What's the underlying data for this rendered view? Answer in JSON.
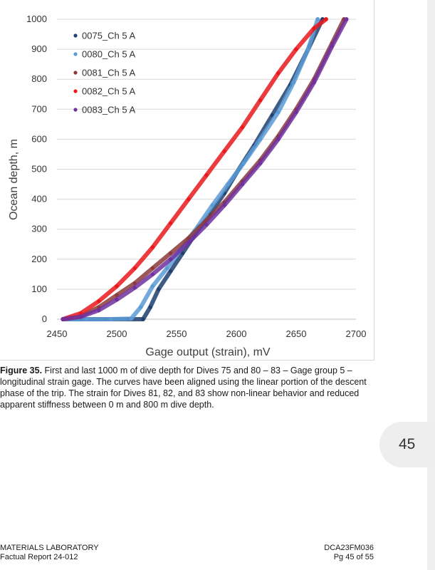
{
  "chart_data": {
    "type": "scatter",
    "title": "",
    "xlabel": "Gage output (strain), mV",
    "ylabel": "Ocean depth, m",
    "xlim": [
      2450,
      2700
    ],
    "ylim": [
      0,
      1000
    ],
    "x_ticks": [
      "2450",
      "2500",
      "2550",
      "2600",
      "2650",
      "2700"
    ],
    "y_ticks": [
      "0",
      "100",
      "200",
      "300",
      "400",
      "500",
      "600",
      "700",
      "800",
      "900",
      "1000"
    ],
    "grid": "horizontal",
    "legend_position": "top-left",
    "series": [
      {
        "name": "0075_Ch 5 A",
        "color": "#1f3f6e",
        "x": [
          2455,
          2470,
          2490,
          2510,
          2522,
          2528,
          2535,
          2545,
          2555,
          2565,
          2578,
          2590,
          2602,
          2615,
          2630,
          2645,
          2660,
          2672
        ],
        "y": [
          0,
          0,
          0,
          0,
          0,
          40,
          100,
          160,
          220,
          280,
          350,
          420,
          500,
          580,
          680,
          780,
          900,
          1000
        ]
      },
      {
        "name": "0080_Ch 5 A",
        "color": "#5b9bd5",
        "x": [
          2455,
          2475,
          2495,
          2512,
          2520,
          2530,
          2542,
          2555,
          2568,
          2580,
          2593,
          2606,
          2620,
          2635,
          2648,
          2660,
          2668
        ],
        "y": [
          0,
          0,
          0,
          2,
          40,
          110,
          170,
          240,
          310,
          380,
          450,
          520,
          600,
          690,
          790,
          900,
          1000
        ]
      },
      {
        "name": "0081_Ch 5 A",
        "color": "#8b3a3a",
        "x": [
          2455,
          2470,
          2485,
          2500,
          2515,
          2530,
          2545,
          2560,
          2575,
          2590,
          2605,
          2620,
          2635,
          2650,
          2665,
          2680,
          2690
        ],
        "y": [
          0,
          10,
          40,
          80,
          120,
          170,
          220,
          270,
          330,
          390,
          460,
          530,
          610,
          700,
          800,
          920,
          1000
        ]
      },
      {
        "name": "0082_Ch 5 A",
        "color": "#e8191c",
        "x": [
          2455,
          2470,
          2485,
          2500,
          2515,
          2530,
          2545,
          2560,
          2575,
          2590,
          2605,
          2620,
          2635,
          2650,
          2665,
          2675
        ],
        "y": [
          0,
          20,
          60,
          110,
          170,
          240,
          320,
          400,
          480,
          560,
          640,
          730,
          820,
          900,
          970,
          1000
        ]
      },
      {
        "name": "0083_Ch 5 A",
        "color": "#7030a0",
        "x": [
          2455,
          2470,
          2485,
          2500,
          2515,
          2530,
          2545,
          2560,
          2575,
          2590,
          2605,
          2620,
          2635,
          2650,
          2665,
          2680,
          2692
        ],
        "y": [
          0,
          8,
          30,
          65,
          105,
          150,
          200,
          255,
          315,
          380,
          450,
          520,
          600,
          690,
          790,
          910,
          1000
        ]
      }
    ]
  },
  "caption": {
    "label": "Figure 35.",
    "text": "First and last 1000 m of dive depth for Dives 75 and 80 – 83 – Gage group 5 – longitudinal strain gage. The curves have been aligned using the linear portion of the descent phase of the trip. The strain for Dives 81, 82, and 83 show non-linear behavior and reduced apparent stiffness between 0 m and 800 m dive depth."
  },
  "page_number": "45",
  "footer": {
    "left_line1": "MATERIALS LABORATORY",
    "left_line2": "Factual Report 24-012",
    "right_line1": "DCA23FM036",
    "right_line2": "Pg 45 of 55"
  }
}
